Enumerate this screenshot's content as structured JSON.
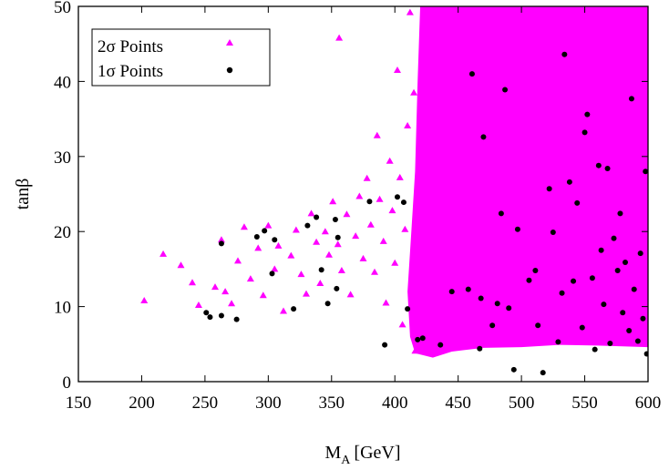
{
  "chart_data": {
    "type": "scatter",
    "xlabel_main": "M",
    "xlabel_sub": "A",
    "xlabel_unit": "[GeV]",
    "ylabel": "tanβ",
    "xlim": [
      150,
      600
    ],
    "ylim": [
      0,
      50
    ],
    "xticks": [
      "150",
      "200",
      "250",
      "300",
      "350",
      "400",
      "450",
      "500",
      "550",
      "600"
    ],
    "yticks": [
      "0",
      "10",
      "20",
      "30",
      "40",
      "50"
    ],
    "legend_position": "top-left",
    "series": [
      {
        "name": "2σ Points",
        "marker": "triangle",
        "color": "#ff00ff",
        "points": [
          [
            202,
            10.8
          ],
          [
            217,
            17.0
          ],
          [
            231,
            15.5
          ],
          [
            240,
            13.2
          ],
          [
            245,
            10.2
          ],
          [
            258,
            12.6
          ],
          [
            263,
            18.9
          ],
          [
            266,
            12.0
          ],
          [
            271,
            10.4
          ],
          [
            276,
            16.1
          ],
          [
            281,
            20.6
          ],
          [
            286,
            13.7
          ],
          [
            292,
            17.8
          ],
          [
            296,
            11.5
          ],
          [
            300,
            20.8
          ],
          [
            305,
            15.0
          ],
          [
            308,
            18.1
          ],
          [
            312,
            9.4
          ],
          [
            318,
            16.8
          ],
          [
            322,
            20.2
          ],
          [
            326,
            14.3
          ],
          [
            330,
            11.7
          ],
          [
            334,
            22.4
          ],
          [
            338,
            18.6
          ],
          [
            341,
            13.1
          ],
          [
            345,
            20.0
          ],
          [
            348,
            16.9
          ],
          [
            351,
            24.0
          ],
          [
            355,
            18.3
          ],
          [
            356,
            45.8
          ],
          [
            358,
            14.8
          ],
          [
            362,
            22.3
          ],
          [
            365,
            11.6
          ],
          [
            369,
            19.4
          ],
          [
            372,
            24.7
          ],
          [
            375,
            16.4
          ],
          [
            378,
            27.1
          ],
          [
            381,
            20.9
          ],
          [
            384,
            14.6
          ],
          [
            386,
            32.8
          ],
          [
            388,
            24.3
          ],
          [
            391,
            18.7
          ],
          [
            393,
            10.5
          ],
          [
            396,
            29.4
          ],
          [
            398,
            22.8
          ],
          [
            400,
            15.8
          ],
          [
            402,
            41.5
          ],
          [
            404,
            27.2
          ],
          [
            406,
            7.6
          ],
          [
            408,
            20.3
          ],
          [
            410,
            34.1
          ],
          [
            412,
            49.2
          ],
          [
            414,
            12.3
          ],
          [
            415,
            38.5
          ],
          [
            416,
            4.1
          ]
        ]
      },
      {
        "name": "1σ Points",
        "marker": "circle",
        "color": "#000000",
        "points": [
          [
            251,
            9.2
          ],
          [
            254,
            8.6
          ],
          [
            263,
            18.4
          ],
          [
            263,
            8.8
          ],
          [
            275,
            8.3
          ],
          [
            291,
            19.3
          ],
          [
            297,
            20.1
          ],
          [
            303,
            14.4
          ],
          [
            305,
            18.9
          ],
          [
            320,
            9.7
          ],
          [
            331,
            20.8
          ],
          [
            338,
            21.9
          ],
          [
            342,
            14.9
          ],
          [
            347,
            10.4
          ],
          [
            353,
            21.6
          ],
          [
            354,
            12.4
          ],
          [
            355,
            19.2
          ],
          [
            380,
            24.0
          ],
          [
            392,
            4.9
          ],
          [
            402,
            24.6
          ],
          [
            407,
            23.9
          ],
          [
            410,
            9.7
          ],
          [
            418,
            5.6
          ],
          [
            422,
            5.8
          ],
          [
            436,
            4.9
          ],
          [
            445,
            12.0
          ],
          [
            458,
            12.3
          ],
          [
            461,
            41.0
          ],
          [
            467,
            4.4
          ],
          [
            468,
            11.1
          ],
          [
            470,
            32.6
          ],
          [
            477,
            7.5
          ],
          [
            481,
            10.4
          ],
          [
            484,
            22.4
          ],
          [
            487,
            38.9
          ],
          [
            490,
            9.8
          ],
          [
            494,
            1.6
          ],
          [
            497,
            20.3
          ],
          [
            506,
            13.5
          ],
          [
            511,
            14.8
          ],
          [
            513,
            7.5
          ],
          [
            517,
            1.2
          ],
          [
            522,
            25.7
          ],
          [
            525,
            19.9
          ],
          [
            529,
            5.3
          ],
          [
            532,
            11.8
          ],
          [
            534,
            43.6
          ],
          [
            538,
            26.6
          ],
          [
            541,
            13.4
          ],
          [
            544,
            23.8
          ],
          [
            548,
            7.2
          ],
          [
            550,
            33.2
          ],
          [
            552,
            35.6
          ],
          [
            556,
            13.8
          ],
          [
            558,
            4.3
          ],
          [
            561,
            28.8
          ],
          [
            563,
            17.5
          ],
          [
            565,
            10.3
          ],
          [
            568,
            28.4
          ],
          [
            570,
            5.1
          ],
          [
            573,
            19.1
          ],
          [
            576,
            14.8
          ],
          [
            578,
            22.4
          ],
          [
            580,
            9.2
          ],
          [
            582,
            15.9
          ],
          [
            585,
            6.8
          ],
          [
            587,
            37.7
          ],
          [
            589,
            12.3
          ],
          [
            592,
            5.4
          ],
          [
            594,
            17.1
          ],
          [
            596,
            8.4
          ],
          [
            598,
            28.0
          ],
          [
            599,
            3.7
          ]
        ]
      }
    ]
  }
}
